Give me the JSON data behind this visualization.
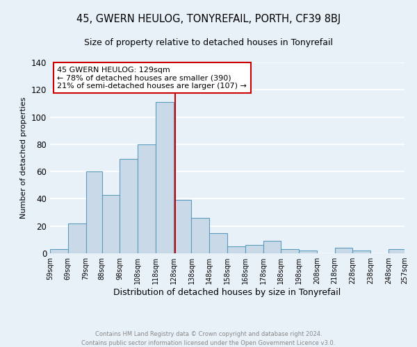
{
  "title": "45, GWERN HEULOG, TONYREFAIL, PORTH, CF39 8BJ",
  "subtitle": "Size of property relative to detached houses in Tonyrefail",
  "xlabel": "Distribution of detached houses by size in Tonyrefail",
  "ylabel": "Number of detached properties",
  "bin_edges": [
    59,
    69,
    79,
    88,
    98,
    108,
    118,
    128,
    138,
    148,
    158,
    168,
    178,
    188,
    198,
    208,
    218,
    228,
    238,
    248,
    257
  ],
  "bar_heights": [
    3,
    22,
    60,
    43,
    69,
    80,
    111,
    39,
    26,
    15,
    5,
    6,
    9,
    3,
    2,
    0,
    4,
    2,
    0,
    3
  ],
  "bar_color": "#c9d9e8",
  "bar_edgecolor": "#5a9cbf",
  "vline_x": 129,
  "vline_color": "#cc0000",
  "annotation_title": "45 GWERN HEULOG: 129sqm",
  "annotation_line1": "← 78% of detached houses are smaller (390)",
  "annotation_line2": "21% of semi-detached houses are larger (107) →",
  "annotation_box_edgecolor": "#cc0000",
  "annotation_box_facecolor": "#ffffff",
  "ylim": [
    0,
    140
  ],
  "tick_labels": [
    "59sqm",
    "69sqm",
    "79sqm",
    "88sqm",
    "98sqm",
    "108sqm",
    "118sqm",
    "128sqm",
    "138sqm",
    "148sqm",
    "158sqm",
    "168sqm",
    "178sqm",
    "188sqm",
    "198sqm",
    "208sqm",
    "218sqm",
    "228sqm",
    "238sqm",
    "248sqm",
    "257sqm"
  ],
  "footer_line1": "Contains HM Land Registry data © Crown copyright and database right 2024.",
  "footer_line2": "Contains public sector information licensed under the Open Government Licence v3.0.",
  "background_color": "#e8f0f8",
  "grid_color": "#ffffff",
  "title_fontsize": 10.5,
  "subtitle_fontsize": 9,
  "ylabel_fontsize": 8,
  "xlabel_fontsize": 9,
  "ytick_fontsize": 8.5,
  "xtick_fontsize": 7,
  "annotation_fontsize": 8,
  "footer_fontsize": 6,
  "footer_color": "#888888"
}
